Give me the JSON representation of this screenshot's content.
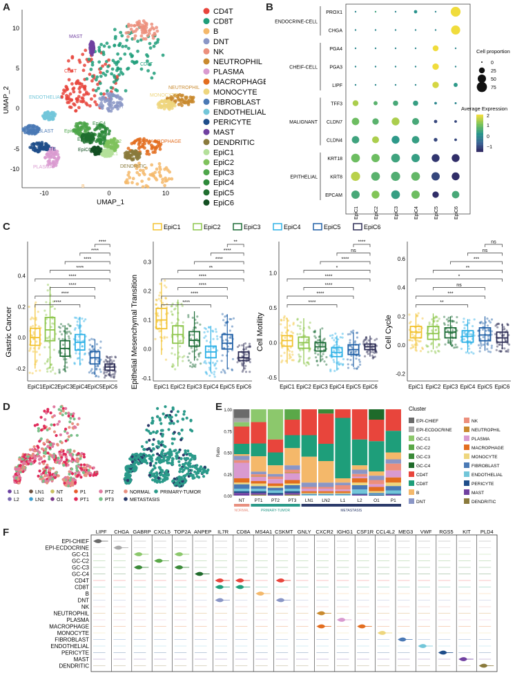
{
  "figure_panels": {
    "a": "A",
    "b": "B",
    "c": "C",
    "d": "D",
    "e": "E",
    "f": "F"
  },
  "panelA": {
    "xlabel": "UMAP_1",
    "ylabel": "UMAP_2",
    "xticks": [
      "-10",
      "0",
      "10"
    ],
    "yticks": [
      "10",
      "5",
      "0",
      "-5",
      "-10"
    ],
    "legend": [
      {
        "name": "CD4T",
        "color": "#e8453c"
      },
      {
        "name": "CD8T",
        "color": "#1e9e7a"
      },
      {
        "name": "B",
        "color": "#f4b86a"
      },
      {
        "name": "DNT",
        "color": "#8a96c6"
      },
      {
        "name": "NK",
        "color": "#ec8f7c"
      },
      {
        "name": "NEUTROPHIL",
        "color": "#c98a2e"
      },
      {
        "name": "PLASMA",
        "color": "#d99ad0"
      },
      {
        "name": "MACROPHAGE",
        "color": "#e36d1f"
      },
      {
        "name": "MONOCYTE",
        "color": "#eed67e"
      },
      {
        "name": "FIBROBLAST",
        "color": "#4a79b5"
      },
      {
        "name": "ENDOTHELIAL",
        "color": "#72c6d9"
      },
      {
        "name": "PERICYTE",
        "color": "#1e4d8a"
      },
      {
        "name": "MAST",
        "color": "#7040a0"
      },
      {
        "name": "DENDRITIC",
        "color": "#8a7a3c"
      },
      {
        "name": "EpiC1",
        "color": "#b4e09a"
      },
      {
        "name": "EpiC2",
        "color": "#7fc25c"
      },
      {
        "name": "EpiC3",
        "color": "#4ea64a"
      },
      {
        "name": "EpiC4",
        "color": "#2d8a3a"
      },
      {
        "name": "EpiC5",
        "color": "#1f6e2f"
      },
      {
        "name": "EpiC6",
        "color": "#134f22"
      }
    ],
    "cluster_labels": [
      "MAST",
      "NK",
      "CD8T",
      "CD4T",
      "NEUTROPHIL",
      "MONOCYTE",
      "ENDOTHELIAL",
      "DNT",
      "FIBROBLAST",
      "EpiC3",
      "EpiC4",
      "PERICYTE",
      "EpiC5",
      "EpiC2",
      "EpiC6",
      "EpiC1",
      "MACROPHAGE",
      "PLASMA",
      "DENDRITIC",
      "B"
    ]
  },
  "panelB": {
    "genes": [
      "PROX1",
      "CHGA",
      "PGA4",
      "PGA3",
      "LIPF",
      "TFF3",
      "CLDN7",
      "CLDN4",
      "KRT18",
      "KRT8",
      "EPCAM"
    ],
    "groups": [
      {
        "name": "ENDOCRINE-CELL",
        "span": [
          0,
          1
        ]
      },
      {
        "name": "CHEIF-CELL",
        "span": [
          2,
          4
        ]
      },
      {
        "name": "MALIGNANT",
        "span": [
          5,
          7
        ]
      },
      {
        "name": "EPITHELIAL",
        "span": [
          8,
          10
        ]
      }
    ],
    "clusters": [
      "EpiC1",
      "EpiC2",
      "EpiC3",
      "EpiC4",
      "EpiC5",
      "EpiC6"
    ],
    "size_title": "Cell proportion",
    "size_legend": [
      "0",
      "25",
      "50",
      "75"
    ],
    "color_title": "Average Expression",
    "color_ticks": [
      "2",
      "1",
      "0",
      "−1"
    ],
    "proportion": [
      [
        2,
        2,
        2,
        8,
        2,
        70
      ],
      [
        2,
        2,
        2,
        2,
        2,
        60
      ],
      [
        2,
        2,
        2,
        2,
        25,
        2
      ],
      [
        2,
        2,
        2,
        2,
        30,
        2
      ],
      [
        2,
        2,
        2,
        2,
        30,
        12
      ],
      [
        25,
        12,
        20,
        20,
        5,
        3
      ],
      [
        40,
        30,
        45,
        35,
        8,
        5
      ],
      [
        40,
        35,
        45,
        40,
        10,
        5
      ],
      [
        55,
        50,
        55,
        50,
        45,
        45
      ],
      [
        60,
        55,
        60,
        55,
        50,
        45
      ],
      [
        50,
        45,
        55,
        50,
        30,
        40
      ]
    ],
    "expression": [
      [
        0,
        0.5,
        0,
        0.2,
        0,
        2
      ],
      [
        0,
        0,
        0,
        0,
        0,
        2
      ],
      [
        0,
        0,
        0,
        0,
        2,
        0
      ],
      [
        0,
        0,
        0,
        0,
        2,
        0
      ],
      [
        0,
        0,
        0,
        0,
        1.8,
        0.3
      ],
      [
        1.5,
        0.8,
        0.6,
        0.4,
        0,
        0
      ],
      [
        1,
        0.8,
        1.5,
        0.6,
        -1,
        -1
      ],
      [
        0.5,
        1.5,
        0.3,
        0.4,
        -1,
        -1
      ],
      [
        1,
        1,
        0.5,
        0.4,
        -1.2,
        -1.3
      ],
      [
        1.6,
        0.8,
        0.7,
        0.9,
        -1,
        -1.3
      ],
      [
        0.6,
        1.2,
        0.4,
        1.0,
        -1.3,
        0.6
      ]
    ]
  },
  "panelC": {
    "legend": [
      {
        "name": "EpiC1",
        "color": "#f2c22e"
      },
      {
        "name": "EpiC2",
        "color": "#8cc54a"
      },
      {
        "name": "EpiC3",
        "color": "#1b6b35"
      },
      {
        "name": "EpiC4",
        "color": "#2bb0e6"
      },
      {
        "name": "EpiC5",
        "color": "#1f5fa6"
      },
      {
        "name": "EpiC6",
        "color": "#2c2c55"
      }
    ],
    "categories": [
      "EpiC1",
      "EpiC2",
      "EpiC3",
      "EpiC4",
      "EpiC5",
      "EpiC6"
    ],
    "plots": [
      {
        "ylabel": "Gastric Cancer",
        "yticks": [
          "0.4",
          "0.2",
          "0.0",
          "-0.2"
        ],
        "ylim": [
          -0.28,
          0.62
        ],
        "tickvals": [
          0.4,
          0.2,
          0.0,
          -0.2
        ],
        "boxes": [
          {
            "q1": -0.05,
            "med": 0.0,
            "q3": 0.06,
            "lo": -0.2,
            "hi": 0.22
          },
          {
            "q1": -0.02,
            "med": 0.05,
            "q3": 0.13,
            "lo": -0.2,
            "hi": 0.33
          },
          {
            "q1": -0.12,
            "med": -0.07,
            "q3": -0.02,
            "lo": -0.22,
            "hi": 0.08
          },
          {
            "q1": -0.08,
            "med": -0.03,
            "q3": 0.02,
            "lo": -0.18,
            "hi": 0.13
          },
          {
            "q1": -0.17,
            "med": -0.13,
            "q3": -0.09,
            "lo": -0.24,
            "hi": -0.01
          },
          {
            "q1": -0.21,
            "med": -0.19,
            "q3": -0.17,
            "lo": -0.25,
            "hi": -0.12
          }
        ],
        "sig": [
          "****",
          "****",
          "****",
          "****",
          "****",
          "****",
          "****",
          "****"
        ]
      },
      {
        "ylabel": "Epithelial Mesenchymal Transition",
        "yticks": [
          "0.3",
          "0.2",
          "0.1",
          "0.0",
          "-0.1"
        ],
        "ylim": [
          -0.11,
          0.37
        ],
        "tickvals": [
          0.3,
          0.2,
          0.1,
          0.0,
          -0.1
        ],
        "boxes": [
          {
            "q1": 0.07,
            "med": 0.1,
            "q3": 0.14,
            "lo": -0.02,
            "hi": 0.23
          },
          {
            "q1": 0.02,
            "med": 0.05,
            "q3": 0.08,
            "lo": -0.06,
            "hi": 0.17
          },
          {
            "q1": 0.01,
            "med": 0.03,
            "q3": 0.06,
            "lo": -0.04,
            "hi": 0.13
          },
          {
            "q1": -0.03,
            "med": -0.01,
            "q3": 0.01,
            "lo": -0.08,
            "hi": 0.08
          },
          {
            "q1": 0.0,
            "med": 0.02,
            "q3": 0.05,
            "lo": -0.07,
            "hi": 0.12
          },
          {
            "q1": -0.04,
            "med": -0.03,
            "q3": -0.01,
            "lo": -0.07,
            "hi": 0.02
          }
        ],
        "sig": [
          "**",
          "****",
          "****",
          "**",
          "****",
          "****",
          "****",
          "****"
        ]
      },
      {
        "ylabel": "Cell Motility",
        "yticks": [
          "1.0",
          "0.5",
          "0.0",
          "-0.5"
        ],
        "ylim": [
          -0.55,
          1.45
        ],
        "tickvals": [
          1.0,
          0.5,
          0.0,
          -0.5
        ],
        "boxes": [
          {
            "q1": -0.05,
            "med": 0.03,
            "q3": 0.1,
            "lo": -0.3,
            "hi": 0.35
          },
          {
            "q1": -0.08,
            "med": 0.0,
            "q3": 0.08,
            "lo": -0.3,
            "hi": 0.35
          },
          {
            "q1": -0.12,
            "med": -0.06,
            "q3": 0.0,
            "lo": -0.28,
            "hi": 0.2
          },
          {
            "q1": -0.2,
            "med": -0.14,
            "q3": -0.07,
            "lo": -0.4,
            "hi": 0.1
          },
          {
            "q1": -0.17,
            "med": -0.1,
            "q3": -0.03,
            "lo": -0.35,
            "hi": 0.15
          },
          {
            "q1": -0.1,
            "med": -0.06,
            "q3": -0.02,
            "lo": -0.2,
            "hi": 0.1
          }
        ],
        "sig": [
          "****",
          "ns",
          "****",
          "*",
          "****",
          "****",
          "****",
          "****"
        ]
      },
      {
        "ylabel": "Cell Cycle",
        "yticks": [
          "0.6",
          "0.4",
          "0.2",
          "0.0",
          "-0.2"
        ],
        "ylim": [
          -0.25,
          0.72
        ],
        "tickvals": [
          0.6,
          0.4,
          0.2,
          0.0,
          -0.2
        ],
        "boxes": [
          {
            "q1": 0.05,
            "med": 0.09,
            "q3": 0.13,
            "lo": -0.02,
            "hi": 0.22
          },
          {
            "q1": 0.04,
            "med": 0.08,
            "q3": 0.13,
            "lo": -0.03,
            "hi": 0.22
          },
          {
            "q1": 0.05,
            "med": 0.09,
            "q3": 0.12,
            "lo": 0.0,
            "hi": 0.2
          },
          {
            "q1": 0.02,
            "med": 0.06,
            "q3": 0.1,
            "lo": -0.05,
            "hi": 0.18
          },
          {
            "q1": 0.03,
            "med": 0.07,
            "q3": 0.12,
            "lo": -0.04,
            "hi": 0.2
          },
          {
            "q1": 0.02,
            "med": 0.05,
            "q3": 0.09,
            "lo": -0.03,
            "hi": 0.15
          }
        ],
        "sig": [
          "ns",
          "ns",
          "***",
          "**",
          "*",
          "ns",
          "***",
          "**"
        ]
      }
    ]
  },
  "panelD": {
    "legend": [
      {
        "name": "L1",
        "color": "#6a3fa0"
      },
      {
        "name": "L2",
        "color": "#7a6ab0"
      },
      {
        "name": "LN1",
        "color": "#6a5040"
      },
      {
        "name": "LN2",
        "color": "#3f9fd0"
      },
      {
        "name": "NT",
        "color": "#c8c060"
      },
      {
        "name": "O1",
        "color": "#7a3a8a"
      },
      {
        "name": "P1",
        "color": "#e85a2a"
      },
      {
        "name": "PT1",
        "color": "#e02a5a"
      },
      {
        "name": "PT2",
        "color": "#e07aa0"
      },
      {
        "name": "PT3",
        "color": "#7ac08a"
      },
      {
        "name": "NORMAL",
        "color": "#e89080"
      },
      {
        "name": "METASTASIS",
        "color": "#2a3a6a"
      },
      {
        "name": "PRIMARY-TUMOR",
        "color": "#2a9a8a"
      }
    ]
  },
  "panelE": {
    "ylabel": "Ratio",
    "yticks": [
      "1.00",
      "0.75",
      "0.50",
      "0.25",
      "0.00"
    ],
    "samples": [
      "NT",
      "PT1",
      "PT2",
      "PT3",
      "LN1",
      "LN2",
      "L1",
      "L2",
      "O1",
      "P1"
    ],
    "groups": [
      {
        "name": "NORMAL",
        "color": "#e89080",
        "span": [
          0,
          0
        ]
      },
      {
        "name": "PRIMARY-TUMOR",
        "color": "#2a9a8a",
        "span": [
          1,
          3
        ]
      },
      {
        "name": "METASTASIS",
        "color": "#2a3a6a",
        "span": [
          4,
          9
        ]
      }
    ],
    "legend_title": "Cluster",
    "clusters": [
      {
        "name": "EPI-CHIEF",
        "color": "#6a6a6a"
      },
      {
        "name": "EPI-ECDOCRINE",
        "color": "#a8a8a8"
      },
      {
        "name": "GC-C1",
        "color": "#8cc86c"
      },
      {
        "name": "GC-C2",
        "color": "#5aa848"
      },
      {
        "name": "GC-C3",
        "color": "#3a8a38"
      },
      {
        "name": "GC-C4",
        "color": "#1e6a2a"
      },
      {
        "name": "CD4T",
        "color": "#e8453c"
      },
      {
        "name": "CD8T",
        "color": "#1e9e7a"
      },
      {
        "name": "B",
        "color": "#f4b86a"
      },
      {
        "name": "DNT",
        "color": "#8a96c6"
      },
      {
        "name": "NK",
        "color": "#ec8f7c"
      },
      {
        "name": "NEUTROPHIL",
        "color": "#c98a2e"
      },
      {
        "name": "PLASMA",
        "color": "#d99ad0"
      },
      {
        "name": "MACROPHAGE",
        "color": "#e36d1f"
      },
      {
        "name": "MONOCYTE",
        "color": "#eed67e"
      },
      {
        "name": "FIBROBLAST",
        "color": "#4a79b5"
      },
      {
        "name": "ENDOTHELIAL",
        "color": "#72c6d9"
      },
      {
        "name": "PERICYTE",
        "color": "#1e4d8a"
      },
      {
        "name": "MAST",
        "color": "#7040a0"
      },
      {
        "name": "DENDRITIC",
        "color": "#8a7a3c"
      }
    ],
    "fractions": [
      [
        0.1,
        0.05,
        0.05,
        0,
        0,
        0,
        0.2,
        0.12,
        0.02,
        0.05,
        0.03,
        0,
        0.18,
        0.05,
        0.02,
        0.05,
        0.03,
        0.02,
        0.03,
        0
      ],
      [
        0,
        0,
        0.15,
        0,
        0,
        0,
        0.25,
        0.15,
        0.18,
        0.03,
        0.02,
        0.01,
        0.05,
        0.03,
        0.03,
        0.03,
        0.03,
        0.02,
        0.02,
        0.01
      ],
      [
        0,
        0,
        0.35,
        0,
        0,
        0,
        0.15,
        0.15,
        0.1,
        0.03,
        0.03,
        0,
        0.05,
        0.03,
        0.02,
        0.03,
        0.03,
        0.02,
        0.01,
        0
      ],
      [
        0,
        0,
        0,
        0.12,
        0,
        0,
        0.18,
        0.15,
        0.2,
        0.05,
        0.03,
        0.01,
        0.08,
        0.04,
        0.02,
        0.04,
        0.03,
        0.02,
        0.02,
        0.01
      ],
      [
        0,
        0,
        0,
        0,
        0,
        0,
        0.3,
        0.25,
        0.3,
        0.05,
        0.02,
        0,
        0.03,
        0.02,
        0.01,
        0.01,
        0.01,
        0,
        0,
        0
      ],
      [
        0,
        0,
        0,
        0,
        0.05,
        0,
        0.35,
        0.2,
        0.25,
        0.05,
        0.02,
        0,
        0.03,
        0.02,
        0.01,
        0.01,
        0.01,
        0,
        0,
        0
      ],
      [
        0,
        0,
        0,
        0,
        0,
        0,
        0.1,
        0.7,
        0.05,
        0.03,
        0.05,
        0,
        0.02,
        0.02,
        0.01,
        0.01,
        0.01,
        0,
        0,
        0
      ],
      [
        0,
        0,
        0,
        0,
        0,
        0,
        0.35,
        0.3,
        0.05,
        0.05,
        0.03,
        0,
        0.02,
        0.05,
        0.03,
        0.05,
        0.05,
        0.01,
        0.01,
        0
      ],
      [
        0,
        0,
        0,
        0,
        0,
        0.12,
        0.25,
        0.35,
        0.05,
        0.05,
        0.05,
        0,
        0.03,
        0.05,
        0.02,
        0.01,
        0.01,
        0.01,
        0,
        0
      ],
      [
        0,
        0,
        0,
        0,
        0,
        0,
        0.25,
        0.25,
        0.08,
        0.05,
        0.08,
        0,
        0.08,
        0.06,
        0.04,
        0.05,
        0.04,
        0.01,
        0.01,
        0
      ]
    ]
  },
  "panelF": {
    "genes": [
      "LIPF",
      "CHGA",
      "GABRP",
      "CXCL5",
      "TOP2A",
      "ANPEP",
      "IL7R",
      "CD8A",
      "MS4A1",
      "CSKMT",
      "GNLY",
      "CXCR2",
      "IGHG1",
      "CSF1R",
      "CCL4L2",
      "MEG3",
      "VWF",
      "RGS5",
      "KIT",
      "PLD4"
    ],
    "rows": [
      "EPI-CHIEF",
      "EPI-ECDOCRINE",
      "GC-C1",
      "GC-C2",
      "GC-C3",
      "GC-C4",
      "CD4T",
      "CD8T",
      "B",
      "DNT",
      "NK",
      "NEUTROPHIL",
      "PLASMA",
      "MACROPHAGE",
      "MONOCYTE",
      "FIBROBLAST",
      "ENDOTHELIAL",
      "PERICYTE",
      "MAST",
      "DENDRITIC"
    ],
    "row_colors": [
      "#6a6a6a",
      "#a8a8a8",
      "#8cc86c",
      "#5aa848",
      "#3a8a38",
      "#1e6a2a",
      "#e8453c",
      "#1e9e7a",
      "#f4b86a",
      "#8a96c6",
      "#ec8f7c",
      "#c98a2e",
      "#d99ad0",
      "#e36d1f",
      "#eed67e",
      "#4a79b5",
      "#72c6d9",
      "#1e4d8a",
      "#7040a0",
      "#8a7a3c"
    ],
    "violins": [
      [
        0,
        0
      ],
      [
        1,
        1
      ],
      [
        2,
        2
      ],
      [
        2,
        4
      ],
      [
        3,
        3
      ],
      [
        4,
        2
      ],
      [
        4,
        4
      ],
      [
        5,
        5
      ],
      [
        6,
        6
      ],
      [
        6,
        7
      ],
      [
        7,
        7
      ],
      [
        7,
        6
      ],
      [
        8,
        8
      ],
      [
        9,
        6
      ],
      [
        9,
        9
      ],
      [
        11,
        11
      ],
      [
        11,
        13
      ],
      [
        12,
        12
      ],
      [
        13,
        13
      ],
      [
        14,
        14
      ],
      [
        15,
        15
      ],
      [
        16,
        16
      ],
      [
        17,
        17
      ],
      [
        18,
        18
      ],
      [
        19,
        19
      ],
      [
        6,
        9
      ]
    ]
  }
}
